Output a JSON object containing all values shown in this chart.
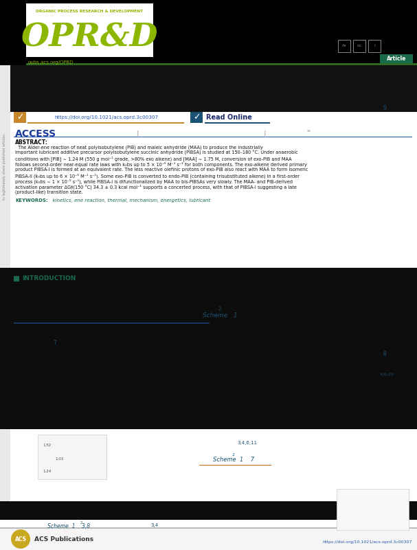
{
  "journal_name": "ORGANIC PROCESS RESEARCH & DEVELOPMENT",
  "journal_abbr": "OPR&D",
  "journal_color": "#8db600",
  "journal_url": "pubs.acs.org/OPRD",
  "article_tag": "Article",
  "article_tag_bg": "#1a6b4a",
  "doi_text": "https://doi.org/10.1021/acs.oprd.3c00307",
  "read_online": "Read Online",
  "access_label": "ACCESS",
  "header_bg": "#000000",
  "content_bg": "#ffffff",
  "intro_section_color": "#1a6b4a",
  "intro_label": "INTRODUCTION",
  "doi_bar_color": "#c8872a",
  "ro_bar_color": "#1a5276",
  "abstract_title": "ABSTRACT:",
  "keywords_label": "KEYWORDS:",
  "keywords_text": "kinetics, ene reaction, thermal, mechanism, energetics, lubricant",
  "keywords_color": "#1a6b4a",
  "intro_text_color": "#1a5276",
  "page_bg": "#000000",
  "bottom_logo_color": "#c8a820",
  "acs_text": "ACS Publications",
  "bottom_doi": "https://doi.org/10.1021/acs.oprd.3c00307",
  "white_bg": "#ffffff",
  "dark_section_bg": "#0a0a0a",
  "sidebar_bg": "#e0e0e0",
  "access_color": "#1a3a9a",
  "abstract_text_color": "#111111"
}
